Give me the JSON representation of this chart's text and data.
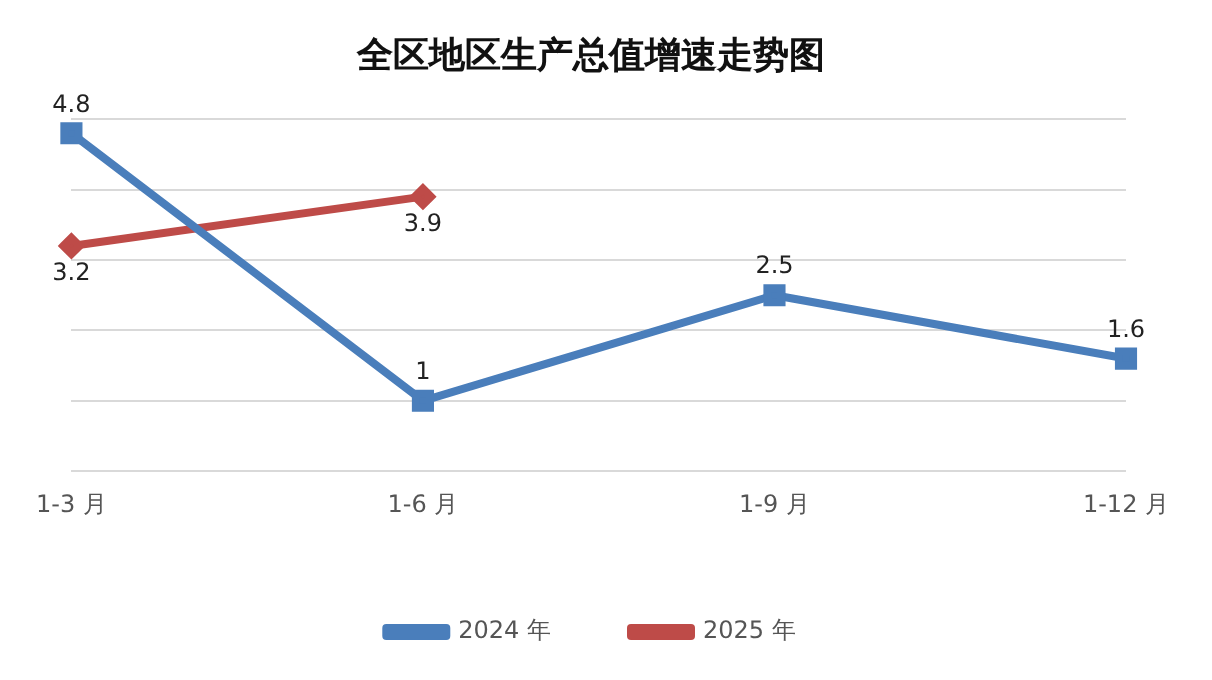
{
  "chart_data": {
    "type": "line",
    "title": "全区地区生产总值增速走势图",
    "categories": [
      "1-3 月",
      "1-6 月",
      "1-9 月",
      "1-12 月"
    ],
    "series": [
      {
        "name": "2024 年",
        "color": "#4a7ebb",
        "values": [
          4.8,
          1,
          2.5,
          1.6
        ],
        "marker": "square"
      },
      {
        "name": "2025 年",
        "color": "#be4b48",
        "values": [
          3.2,
          3.9,
          null,
          null
        ],
        "marker": "diamond"
      }
    ],
    "ylim": [
      0,
      5
    ],
    "yticks": [
      0,
      1,
      2,
      3,
      4,
      5
    ],
    "tick_labels": "x",
    "grid": "y",
    "legend": "bottom",
    "data_labels": true
  }
}
